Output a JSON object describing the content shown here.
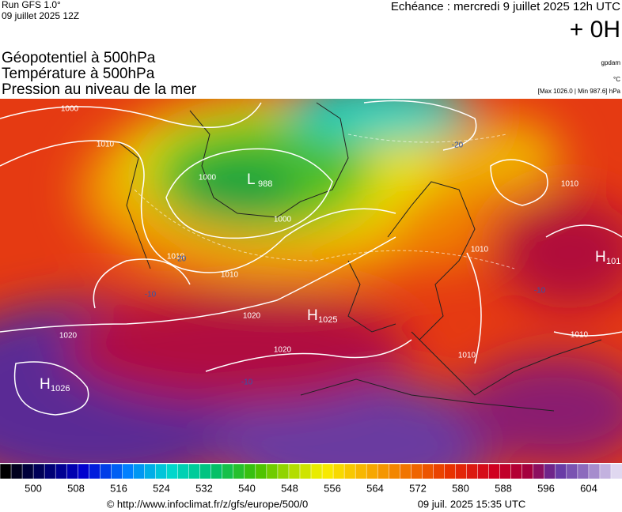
{
  "header": {
    "run": "Run GFS 1.0°",
    "date": "09 juillet 2025 12Z",
    "echeance": "Echéance : mercredi 9 juillet 2025 12h UTC",
    "offset": "+ 0H",
    "fields": [
      "Géopotentiel à 500hPa",
      "Température à 500hPa",
      "Pression au niveau de la mer"
    ],
    "units": [
      "gpdam",
      "°C",
      "[Max 1026.0 | Min 987.6] hPa"
    ]
  },
  "map": {
    "pressure_centers": [
      {
        "symbol": "L",
        "value": "988"
      },
      {
        "symbol": "H",
        "value": "1025"
      },
      {
        "symbol": "H",
        "value": "1026"
      },
      {
        "symbol": "H",
        "value": "101"
      }
    ],
    "isobar_labels": [
      "1000",
      "1010",
      "1000",
      "1000",
      "1010",
      "1010",
      "1020",
      "1020",
      "1020",
      "1010",
      "1010",
      "1010",
      "1010"
    ],
    "temperature_labels": [
      "-20",
      "-20",
      "-10",
      "-10",
      "-10"
    ]
  },
  "colorbar": {
    "labels": [
      500,
      508,
      516,
      524,
      532,
      540,
      548,
      556,
      564,
      572,
      580,
      588,
      596,
      604
    ]
  },
  "footer": {
    "url": "© http://www.infoclimat.fr/z/gfs/europe/500/0",
    "timestamp": "09 juil. 2025 15:35 UTC"
  }
}
